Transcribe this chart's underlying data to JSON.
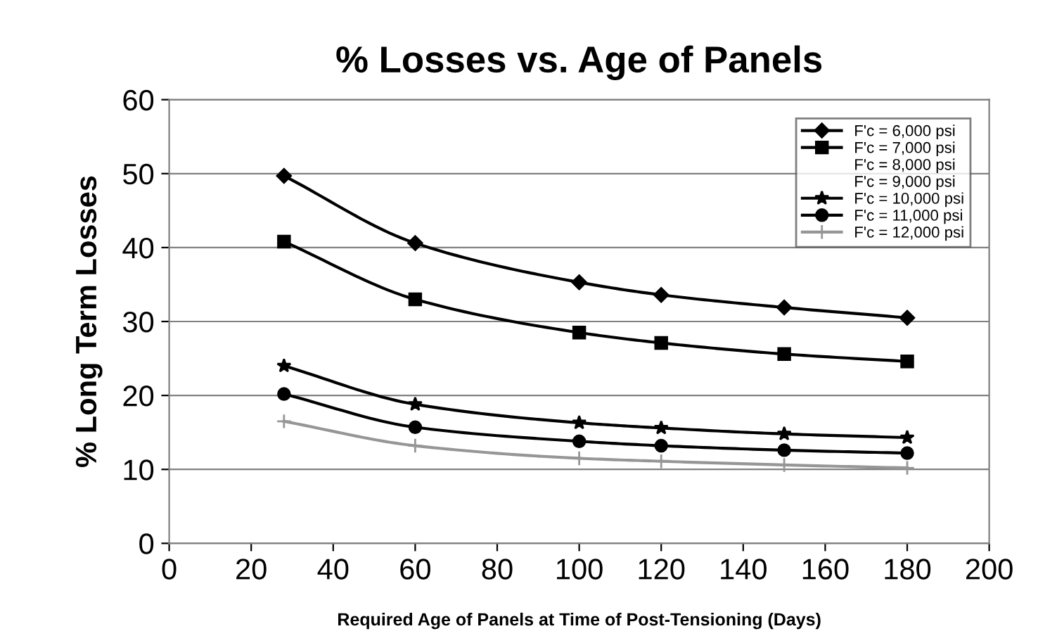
{
  "chart_data": {
    "type": "line",
    "title": "% Losses vs. Age of Panels",
    "xlabel": "Required Age of Panels at Time of Post-Tensioning (Days)",
    "ylabel": "% Long Term Losses",
    "x": [
      28,
      60,
      100,
      120,
      150,
      180
    ],
    "series": [
      {
        "name": "F'c = 6,000 psi",
        "color": "#000000",
        "marker": "diamond",
        "values": [
          49.7,
          40.6,
          35.3,
          33.6,
          31.9,
          30.5
        ]
      },
      {
        "name": "F'c = 7,000 psi",
        "color": "#000000",
        "marker": "square",
        "values": [
          40.8,
          33.0,
          28.5,
          27.1,
          25.6,
          24.6
        ]
      },
      {
        "name": "F'c = 8,000 psi",
        "marker": "none",
        "values": [
          null,
          null,
          null,
          null,
          null,
          null
        ]
      },
      {
        "name": "F'c = 9,000 psi",
        "marker": "none",
        "values": [
          null,
          null,
          null,
          null,
          null,
          null
        ]
      },
      {
        "name": "F'c = 10,000 psi",
        "color": "#000000",
        "marker": "star",
        "values": [
          24.0,
          18.8,
          16.3,
          15.6,
          14.8,
          14.3
        ]
      },
      {
        "name": "F'c = 11,000 psi",
        "color": "#000000",
        "marker": "circle",
        "values": [
          20.2,
          15.7,
          13.8,
          13.2,
          12.6,
          12.2
        ]
      },
      {
        "name": "F'c = 12,000 psi",
        "color": "#969696",
        "marker": "cross",
        "values": [
          16.5,
          13.2,
          11.5,
          11.1,
          10.6,
          10.2
        ]
      }
    ],
    "xlim": [
      0,
      200
    ],
    "xticks": [
      0,
      20,
      40,
      60,
      80,
      100,
      120,
      140,
      160,
      180,
      200
    ],
    "ylim": [
      0,
      60
    ],
    "yticks": [
      0,
      10,
      20,
      30,
      40,
      50,
      60
    ],
    "grid": "y",
    "legend": "top right",
    "line_style": "solid"
  }
}
